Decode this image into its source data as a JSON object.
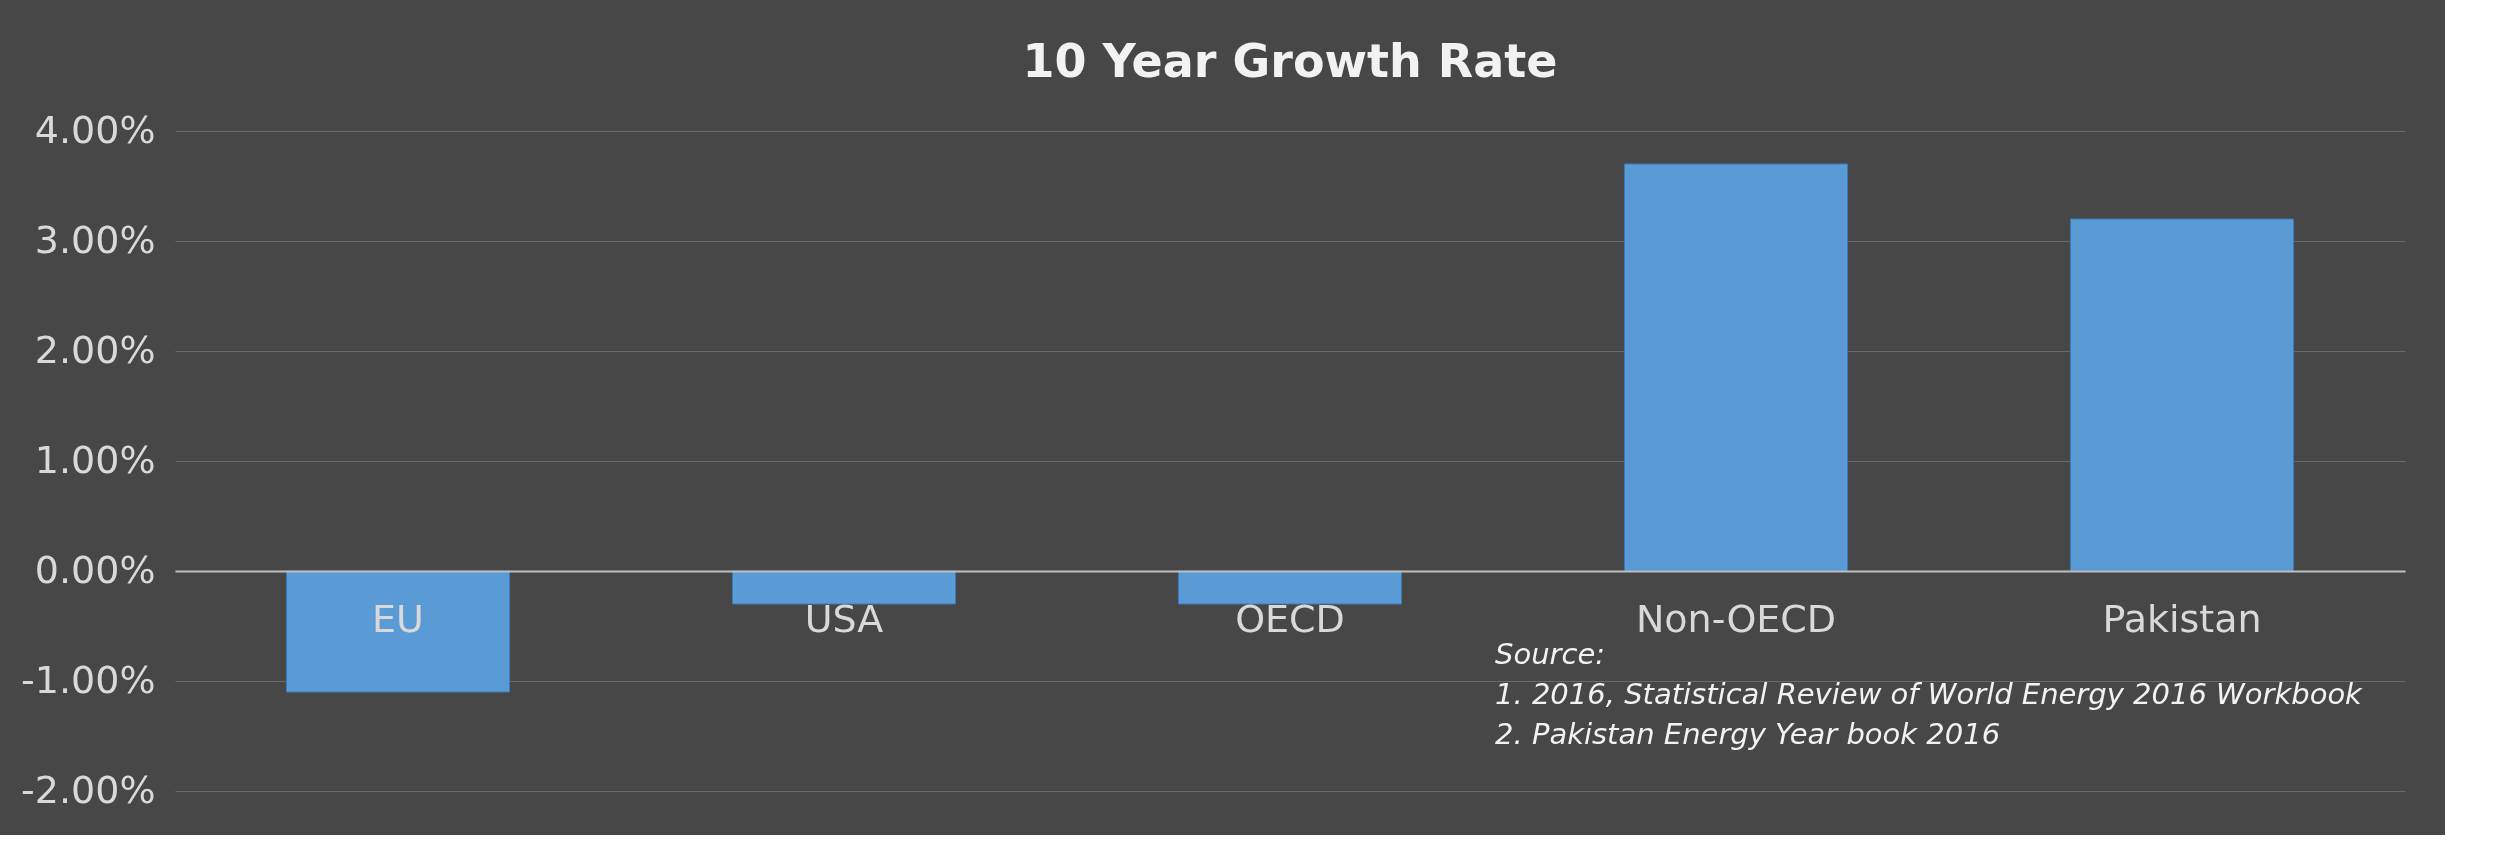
{
  "chart_data": {
    "type": "bar",
    "title": "10 Year Growth Rate",
    "categories": [
      "EU",
      "USA",
      "OECD",
      "Non-OECD",
      "Pakistan"
    ],
    "values": [
      -1.1,
      -0.3,
      -0.3,
      3.7,
      3.2
    ],
    "color": "#5b9bd5",
    "ylim": [
      -2,
      4
    ],
    "yticks": [
      {
        "value": -2,
        "label": "-2.00%"
      },
      {
        "value": -1,
        "label": "-1.00%"
      },
      {
        "value": 0,
        "label": "0.00%"
      },
      {
        "value": 1,
        "label": "1.00%"
      },
      {
        "value": 2,
        "label": "2.00%"
      },
      {
        "value": 3,
        "label": "3.00%"
      },
      {
        "value": 4,
        "label": "4.00%"
      }
    ],
    "grid": "y",
    "annotations": [
      "Source:",
      "1. 2016, Statistical Review of World Energy 2016 Workbook",
      "2. Pakistan Energy Year book 2016"
    ]
  }
}
